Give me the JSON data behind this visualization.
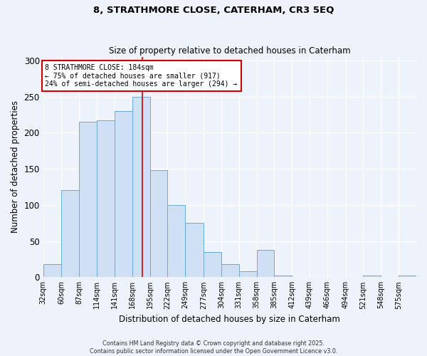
{
  "title1": "8, STRATHMORE CLOSE, CATERHAM, CR3 5EQ",
  "title2": "Size of property relative to detached houses in Caterham",
  "xlabel": "Distribution of detached houses by size in Caterham",
  "ylabel": "Number of detached properties",
  "bin_labels": [
    "32sqm",
    "60sqm",
    "87sqm",
    "114sqm",
    "141sqm",
    "168sqm",
    "195sqm",
    "222sqm",
    "249sqm",
    "277sqm",
    "304sqm",
    "331sqm",
    "358sqm",
    "385sqm",
    "412sqm",
    "439sqm",
    "466sqm",
    "494sqm",
    "521sqm",
    "548sqm",
    "575sqm"
  ],
  "bin_edges": [
    32,
    60,
    87,
    114,
    141,
    168,
    195,
    222,
    249,
    277,
    304,
    331,
    358,
    385,
    412,
    439,
    466,
    494,
    521,
    548,
    575,
    602
  ],
  "bar_values": [
    18,
    120,
    215,
    217,
    230,
    250,
    148,
    100,
    75,
    35,
    18,
    8,
    38,
    2,
    0,
    0,
    0,
    0,
    2,
    0,
    2
  ],
  "bar_color": "#cfe0f4",
  "bar_edge_color": "#6aaad4",
  "property_value": 184,
  "vline_color": "#cc0000",
  "annotation_title": "8 STRATHMORE CLOSE: 184sqm",
  "annotation_line1": "← 75% of detached houses are smaller (917)",
  "annotation_line2": "24% of semi-detached houses are larger (294) →",
  "annotation_box_color": "#ffffff",
  "annotation_box_edge": "#cc0000",
  "ylim": [
    0,
    305
  ],
  "yticks": [
    0,
    50,
    100,
    150,
    200,
    250,
    300
  ],
  "footer1": "Contains HM Land Registry data © Crown copyright and database right 2025.",
  "footer2": "Contains public sector information licensed under the Open Government Licence v3.0.",
  "bg_color": "#edf2fb",
  "plot_bg_color": "#edf2fb"
}
